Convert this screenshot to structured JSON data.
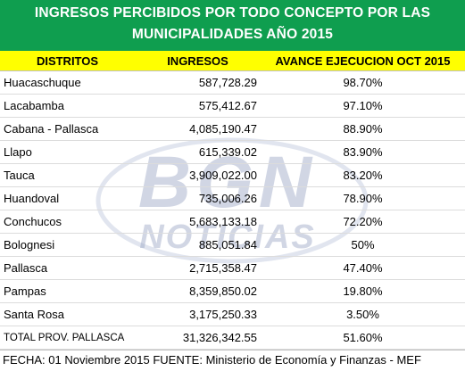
{
  "title": {
    "line1": "INGRESOS PERCIBIDOS POR TODO CONCEPTO POR LAS",
    "line2": "MUNICIPALIDADES AÑO 2015"
  },
  "headers": {
    "distritos": "DISTRITOS",
    "ingresos": "INGRESOS",
    "avance": "AVANCE EJECUCION OCT 2015"
  },
  "rows": [
    {
      "distrito": "Huacaschuque",
      "ingresos": "587,728.29",
      "avance": "98.70%"
    },
    {
      "distrito": "Lacabamba",
      "ingresos": "575,412.67",
      "avance": "97.10%"
    },
    {
      "distrito": "Cabana - Pallasca",
      "ingresos": "4,085,190.47",
      "avance": "88.90%"
    },
    {
      "distrito": "Llapo",
      "ingresos": "615,339.02",
      "avance": "83.90%"
    },
    {
      "distrito": "Tauca",
      "ingresos": "3,909,022.00",
      "avance": "83.20%"
    },
    {
      "distrito": "Huandoval",
      "ingresos": "735,006.26",
      "avance": "78.90%"
    },
    {
      "distrito": "Conchucos",
      "ingresos": "5,683,133.18",
      "avance": "72.20%"
    },
    {
      "distrito": "Bolognesi",
      "ingresos": "885,051.84",
      "avance": "50%"
    },
    {
      "distrito": "Pallasca",
      "ingresos": "2,715,358.47",
      "avance": "47.40%"
    },
    {
      "distrito": "Pampas",
      "ingresos": "8,359,850.02",
      "avance": "19.80%"
    },
    {
      "distrito": "Santa Rosa",
      "ingresos": "3,175,250.33",
      "avance": "3.50%"
    }
  ],
  "total": {
    "distrito": "TOTAL PROV. PALLASCA",
    "ingresos": "31,326,342.55",
    "avance": "51.60%"
  },
  "footer": "FECHA: 01 Noviembre 2015 FUENTE: Ministerio de Economía y Finanzas - MEF",
  "watermark": {
    "line1": "BGN",
    "line2": "NOTICIAS"
  },
  "colors": {
    "title_bg": "#0f9e4f",
    "header_bg": "#ffff00",
    "watermark": "#9aa6c4"
  }
}
